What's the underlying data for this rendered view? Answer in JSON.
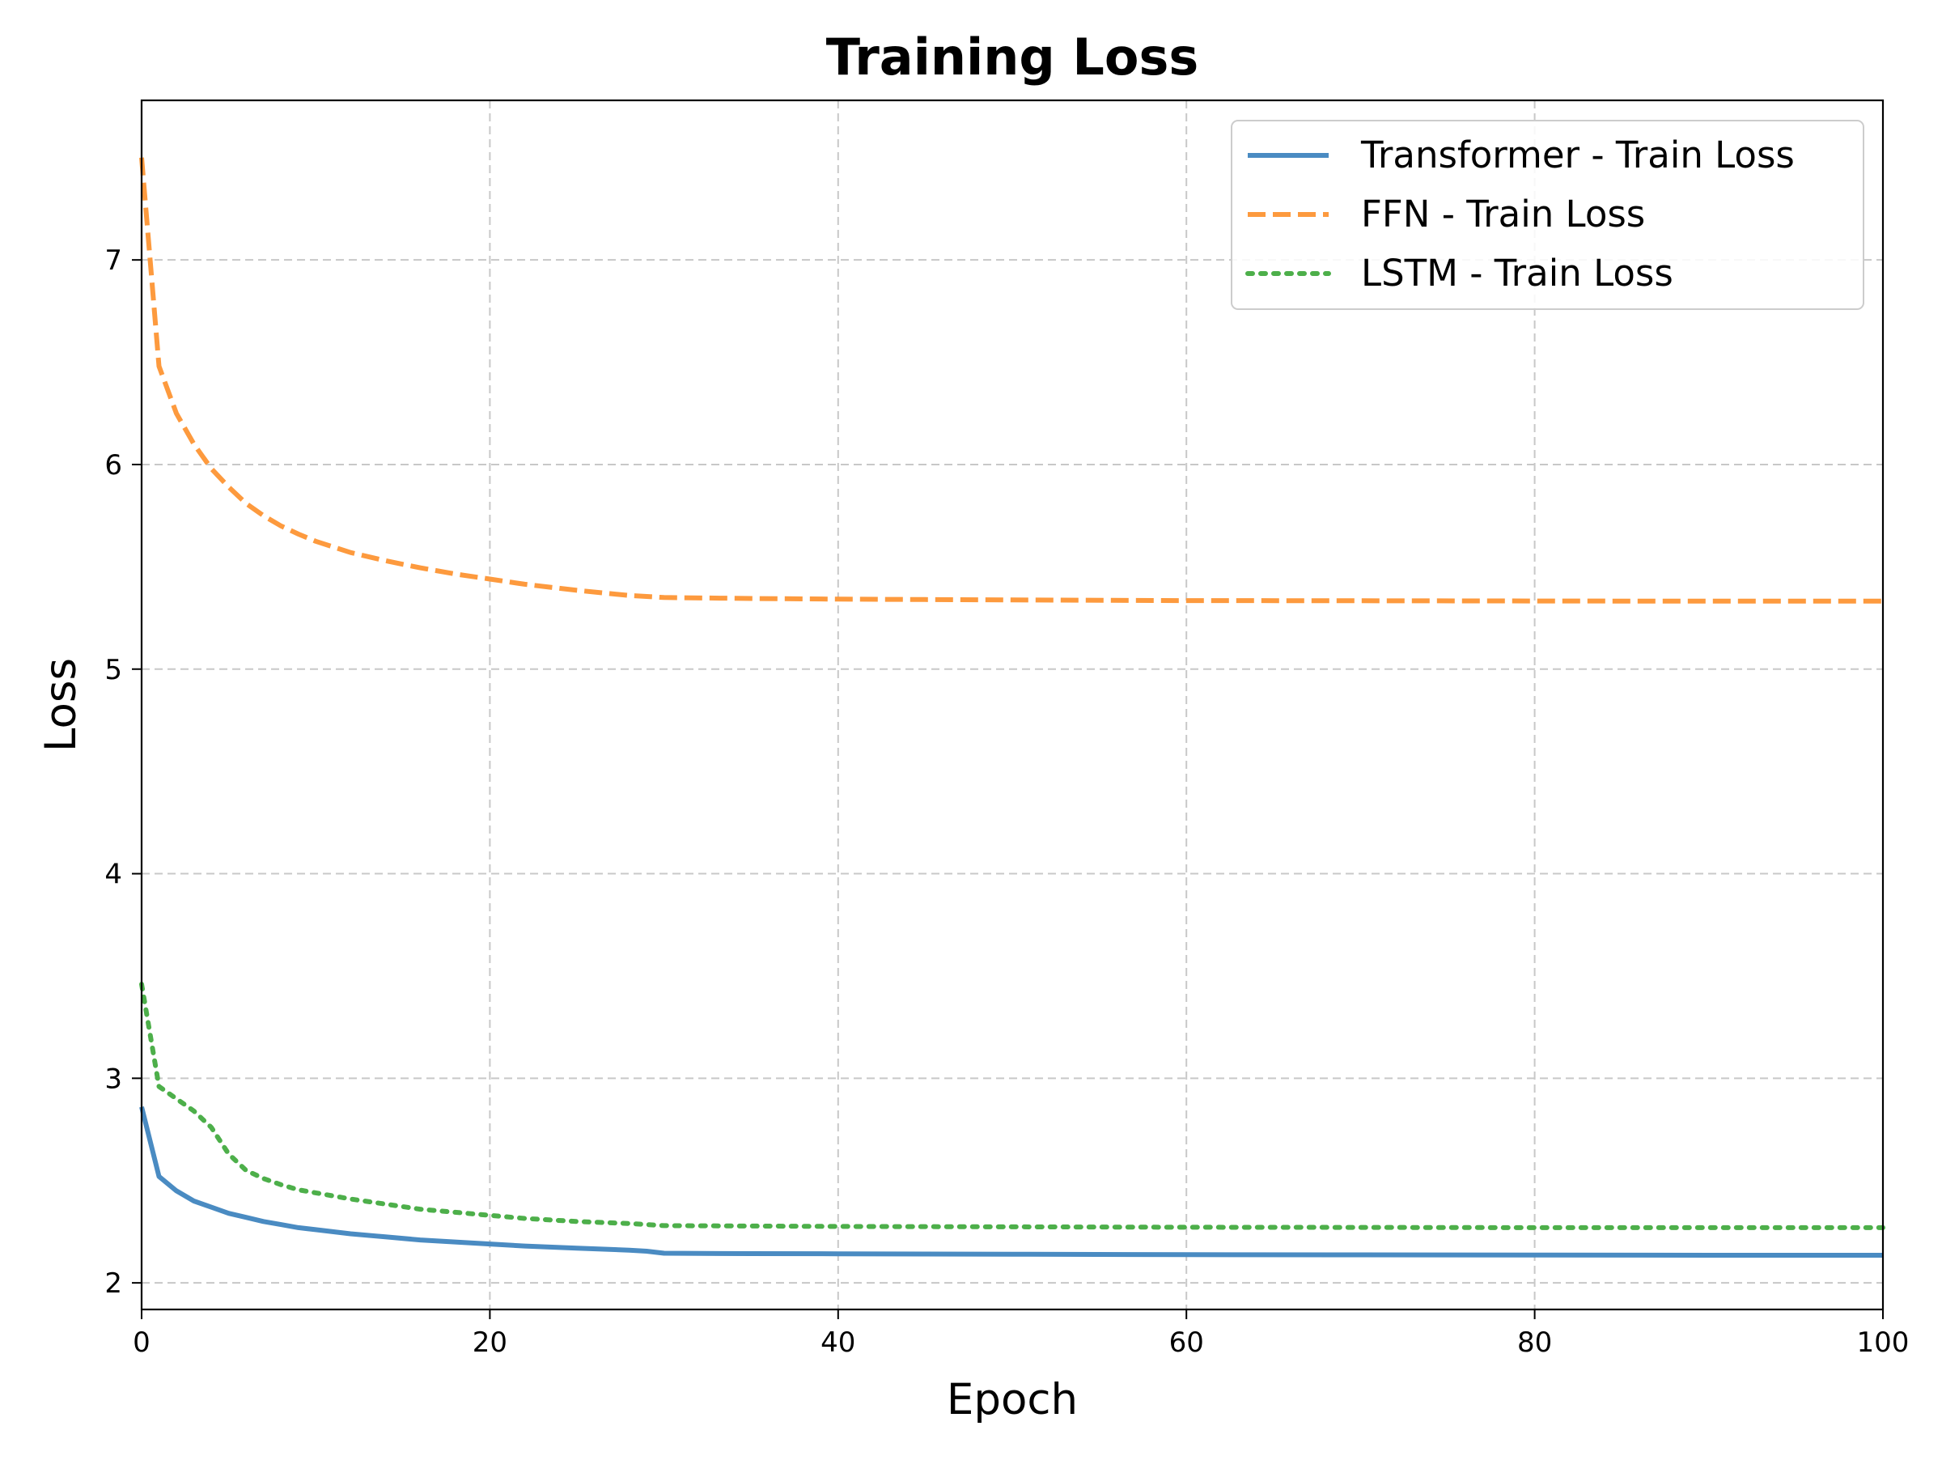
{
  "chart_data": {
    "type": "line",
    "title": "Training Loss",
    "xlabel": "Epoch",
    "ylabel": "Loss",
    "xlim": [
      0,
      100
    ],
    "ylim": [
      1.87,
      7.78
    ],
    "xticks": [
      0,
      20,
      40,
      60,
      80,
      100
    ],
    "yticks": [
      2,
      3,
      4,
      5,
      6,
      7
    ],
    "xtick_labels": [
      "0",
      "20",
      "40",
      "60",
      "80",
      "100"
    ],
    "ytick_labels": [
      "2",
      "3",
      "4",
      "5",
      "6",
      "7"
    ],
    "grid": true,
    "legend_position": "top-right",
    "x": [
      0,
      1,
      2,
      3,
      4,
      5,
      6,
      7,
      8,
      9,
      10,
      12,
      14,
      16,
      18,
      20,
      22,
      25,
      28,
      29,
      30,
      35,
      40,
      50,
      60,
      70,
      80,
      90,
      100
    ],
    "series": [
      {
        "name": "Transformer - Train Loss",
        "color": "#4a8bc2",
        "style": "solid",
        "values": [
          2.86,
          2.52,
          2.45,
          2.4,
          2.37,
          2.34,
          2.32,
          2.3,
          2.285,
          2.27,
          2.26,
          2.24,
          2.225,
          2.21,
          2.2,
          2.19,
          2.18,
          2.17,
          2.16,
          2.155,
          2.145,
          2.143,
          2.142,
          2.14,
          2.138,
          2.137,
          2.136,
          2.135,
          2.135
        ]
      },
      {
        "name": "FFN - Train Loss",
        "color": "#fd9a3e",
        "style": "dashed",
        "values": [
          7.5,
          6.48,
          6.25,
          6.1,
          5.98,
          5.89,
          5.81,
          5.75,
          5.7,
          5.66,
          5.625,
          5.57,
          5.53,
          5.495,
          5.465,
          5.44,
          5.415,
          5.385,
          5.36,
          5.355,
          5.35,
          5.345,
          5.342,
          5.338,
          5.335,
          5.334,
          5.333,
          5.332,
          5.332
        ]
      },
      {
        "name": "LSTM - Train Loss",
        "color": "#4daf4a",
        "style": "dotted",
        "values": [
          3.46,
          2.96,
          2.9,
          2.84,
          2.76,
          2.63,
          2.55,
          2.51,
          2.48,
          2.455,
          2.44,
          2.41,
          2.385,
          2.36,
          2.345,
          2.33,
          2.315,
          2.3,
          2.29,
          2.285,
          2.28,
          2.278,
          2.276,
          2.274,
          2.272,
          2.271,
          2.27,
          2.27,
          2.27
        ]
      }
    ]
  }
}
